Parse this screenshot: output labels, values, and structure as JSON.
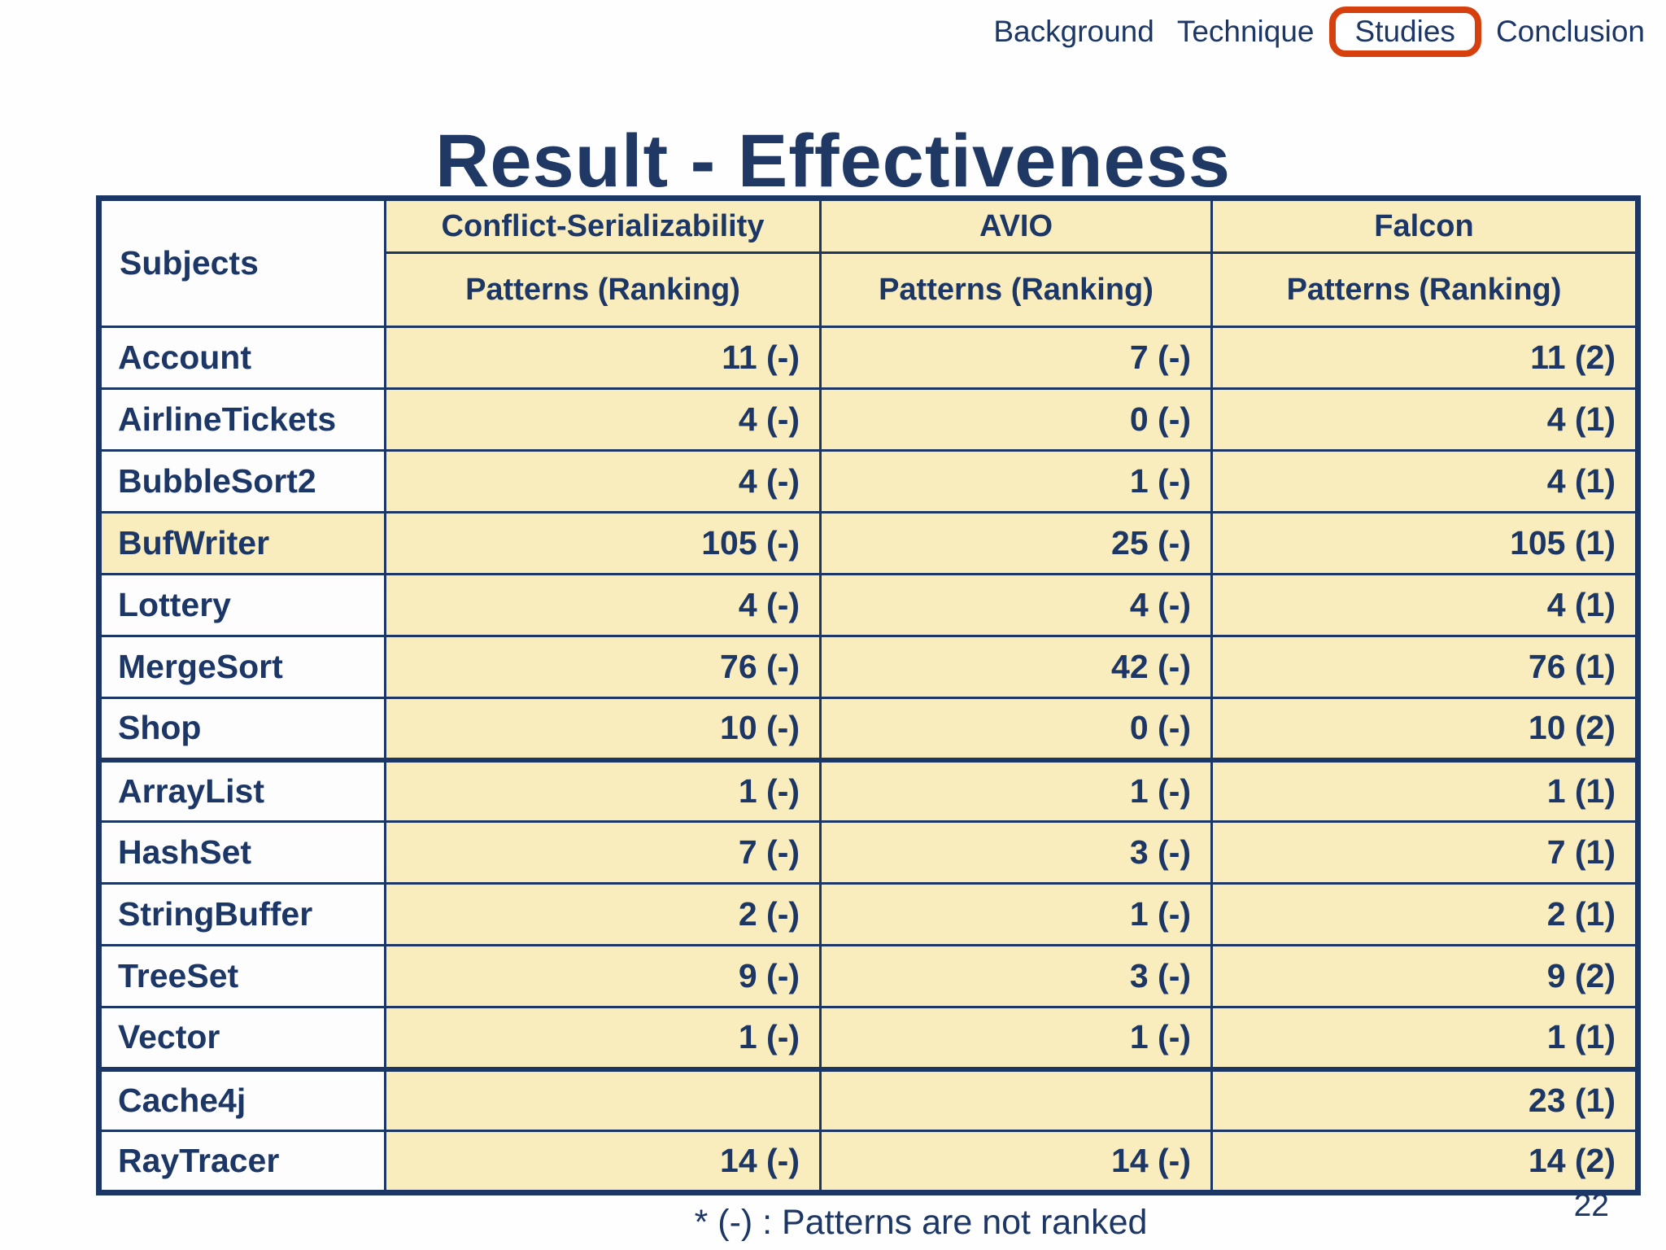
{
  "nav": {
    "items": [
      {
        "label": "Background",
        "active": false
      },
      {
        "label": "Technique",
        "active": false
      },
      {
        "label": "Studies",
        "active": true
      },
      {
        "label": "Conclusion",
        "active": false
      }
    ]
  },
  "title": "Result - Effectiveness",
  "table": {
    "subjects_header": "Subjects",
    "columns": [
      {
        "name": "Conflict-Serializability",
        "subheader": "Patterns (Ranking)"
      },
      {
        "name": "AVIO",
        "subheader": "Patterns (Ranking)"
      },
      {
        "name": "Falcon",
        "subheader": "Patterns (Ranking)"
      }
    ],
    "rows": [
      {
        "subject": "Account",
        "cs": "11 (-)",
        "avio": "7 (-)",
        "falcon": "11 (2)"
      },
      {
        "subject": "AirlineTickets",
        "cs": "4 (-)",
        "avio": "0 (-)",
        "falcon": "4 (1)"
      },
      {
        "subject": "BubbleSort2",
        "cs": "4 (-)",
        "avio": "1 (-)",
        "falcon": "4 (1)"
      },
      {
        "subject": "BufWriter",
        "cs": "105 (-)",
        "avio": "25 (-)",
        "falcon": "105 (1)"
      },
      {
        "subject": "Lottery",
        "cs": "4 (-)",
        "avio": "4 (-)",
        "falcon": "4 (1)"
      },
      {
        "subject": "MergeSort",
        "cs": "76 (-)",
        "avio": "42 (-)",
        "falcon": "76 (1)"
      },
      {
        "subject": "Shop",
        "cs": "10 (-)",
        "avio": "0 (-)",
        "falcon": "10 (2)"
      },
      {
        "subject": "ArrayList",
        "cs": "1 (-)",
        "avio": "1 (-)",
        "falcon": "1 (1)"
      },
      {
        "subject": "HashSet",
        "cs": "7 (-)",
        "avio": "3 (-)",
        "falcon": "7 (1)"
      },
      {
        "subject": "StringBuffer",
        "cs": "2 (-)",
        "avio": "1 (-)",
        "falcon": "2 (1)"
      },
      {
        "subject": "TreeSet",
        "cs": "9 (-)",
        "avio": "3 (-)",
        "falcon": "9 (2)"
      },
      {
        "subject": "Vector",
        "cs": "1 (-)",
        "avio": "1 (-)",
        "falcon": "1 (1)"
      },
      {
        "subject": "Cache4j",
        "cs": "",
        "avio": "",
        "falcon": "23 (1)"
      },
      {
        "subject": "RayTracer",
        "cs": "14 (-)",
        "avio": "14 (-)",
        "falcon": "14 (2)"
      }
    ]
  },
  "footnote": "* (-) :  Patterns are not ranked",
  "page_number": "22",
  "colors": {
    "navy_text": "#1c3766",
    "title_navy": "#1f3864",
    "cell_cream": "#faedbd",
    "highlight_box_orange": "#d5400e",
    "background": "#fefefe"
  }
}
